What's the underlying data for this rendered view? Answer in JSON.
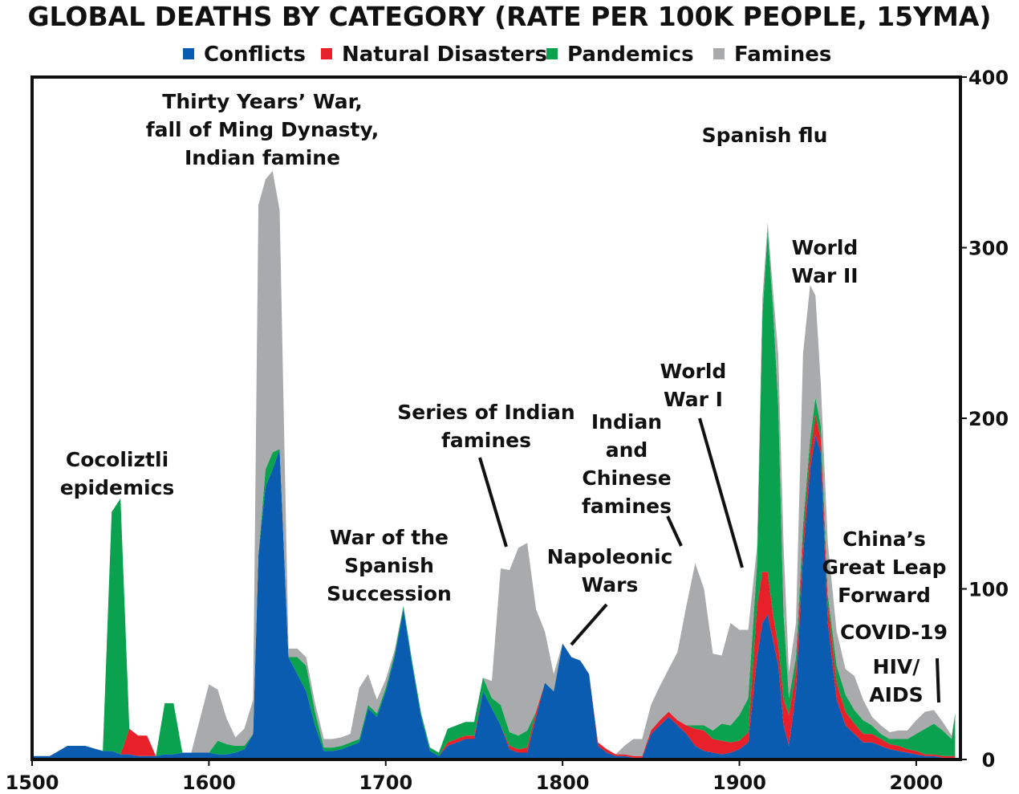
{
  "chart_data": {
    "type": "area",
    "title": "GLOBAL DEATHS BY CATEGORY (RATE PER 100K PEOPLE, 15YMA)",
    "stacked": true,
    "xlim": [
      1500,
      2025
    ],
    "ylim": [
      0,
      400
    ],
    "x_ticks": [
      "1500",
      "1600",
      "1700",
      "1800",
      "1900",
      "2000"
    ],
    "y_ticks": [
      "0",
      "100",
      "200",
      "300",
      "400"
    ],
    "y_axis_side": "right",
    "legend_position": "top",
    "x": [
      1500,
      1510,
      1520,
      1530,
      1540,
      1545,
      1550,
      1555,
      1560,
      1565,
      1570,
      1575,
      1580,
      1585,
      1590,
      1595,
      1600,
      1605,
      1610,
      1615,
      1620,
      1625,
      1628,
      1632,
      1636,
      1640,
      1645,
      1650,
      1655,
      1660,
      1665,
      1670,
      1675,
      1680,
      1685,
      1690,
      1695,
      1700,
      1705,
      1710,
      1715,
      1720,
      1725,
      1730,
      1735,
      1740,
      1745,
      1750,
      1755,
      1760,
      1765,
      1770,
      1775,
      1780,
      1785,
      1790,
      1795,
      1800,
      1805,
      1810,
      1815,
      1820,
      1825,
      1830,
      1835,
      1840,
      1845,
      1850,
      1855,
      1860,
      1865,
      1870,
      1875,
      1880,
      1885,
      1890,
      1895,
      1900,
      1905,
      1910,
      1913,
      1916,
      1919,
      1922,
      1925,
      1928,
      1932,
      1936,
      1940,
      1943,
      1946,
      1950,
      1955,
      1960,
      1965,
      1970,
      1975,
      1980,
      1985,
      1990,
      1995,
      2000,
      2005,
      2010,
      2015,
      2020,
      2022
    ],
    "series": [
      {
        "name": "Conflicts",
        "color": "#0a5cb0",
        "values": [
          2,
          2,
          8,
          8,
          5,
          5,
          3,
          3,
          2,
          2,
          2,
          3,
          3,
          4,
          4,
          4,
          4,
          3,
          3,
          4,
          6,
          15,
          120,
          160,
          170,
          182,
          60,
          50,
          40,
          20,
          5,
          5,
          6,
          8,
          10,
          30,
          25,
          40,
          60,
          88,
          55,
          25,
          5,
          2,
          8,
          10,
          12,
          12,
          40,
          30,
          20,
          6,
          4,
          4,
          25,
          45,
          40,
          68,
          60,
          58,
          50,
          8,
          4,
          2,
          2,
          1,
          1,
          15,
          20,
          25,
          20,
          15,
          8,
          5,
          4,
          3,
          4,
          6,
          10,
          60,
          80,
          85,
          70,
          55,
          20,
          8,
          40,
          120,
          170,
          190,
          180,
          80,
          35,
          20,
          15,
          10,
          10,
          8,
          6,
          5,
          4,
          3,
          2,
          2,
          1,
          1,
          1
        ]
      },
      {
        "name": "Natural Disasters",
        "color": "#e8202a",
        "values": [
          0,
          0,
          0,
          0,
          0,
          0,
          0,
          15,
          12,
          12,
          0,
          0,
          0,
          0,
          0,
          0,
          0,
          0,
          0,
          0,
          0,
          0,
          0,
          0,
          0,
          0,
          0,
          0,
          0,
          0,
          0,
          0,
          0,
          0,
          0,
          0,
          0,
          0,
          0,
          0,
          0,
          0,
          0,
          0,
          2,
          2,
          2,
          2,
          0,
          0,
          0,
          2,
          2,
          3,
          3,
          0,
          0,
          0,
          0,
          0,
          0,
          2,
          2,
          1,
          1,
          1,
          1,
          2,
          3,
          3,
          3,
          5,
          10,
          12,
          8,
          8,
          6,
          5,
          6,
          30,
          30,
          25,
          15,
          12,
          15,
          18,
          12,
          10,
          10,
          12,
          8,
          12,
          10,
          8,
          6,
          5,
          5,
          4,
          3,
          3,
          2,
          2,
          1,
          1,
          1,
          1,
          1
        ]
      },
      {
        "name": "Pandemics",
        "color": "#0aa14f",
        "values": [
          0,
          0,
          0,
          0,
          0,
          140,
          150,
          0,
          0,
          0,
          0,
          30,
          30,
          0,
          0,
          0,
          0,
          8,
          6,
          4,
          2,
          0,
          0,
          10,
          10,
          0,
          0,
          10,
          15,
          8,
          2,
          2,
          2,
          2,
          2,
          2,
          2,
          2,
          2,
          2,
          2,
          2,
          2,
          2,
          8,
          8,
          8,
          8,
          8,
          6,
          12,
          8,
          8,
          10,
          0,
          0,
          0,
          0,
          0,
          0,
          0,
          0,
          0,
          0,
          0,
          0,
          0,
          0,
          0,
          0,
          0,
          0,
          2,
          3,
          5,
          10,
          10,
          15,
          20,
          25,
          150,
          200,
          180,
          140,
          50,
          10,
          8,
          8,
          8,
          10,
          8,
          5,
          10,
          10,
          8,
          8,
          5,
          3,
          3,
          4,
          6,
          10,
          15,
          18,
          15,
          10,
          25
        ]
      },
      {
        "name": "Famines",
        "color": "#a9aaab",
        "values": [
          0,
          0,
          0,
          0,
          0,
          0,
          0,
          0,
          0,
          0,
          0,
          0,
          0,
          0,
          0,
          20,
          40,
          30,
          15,
          5,
          10,
          20,
          205,
          170,
          165,
          140,
          5,
          5,
          5,
          5,
          5,
          5,
          5,
          5,
          30,
          18,
          8,
          5,
          2,
          0,
          0,
          0,
          0,
          0,
          0,
          0,
          0,
          0,
          0,
          10,
          80,
          95,
          110,
          110,
          60,
          30,
          10,
          0,
          0,
          0,
          0,
          0,
          0,
          0,
          5,
          10,
          10,
          15,
          20,
          25,
          40,
          70,
          95,
          80,
          45,
          40,
          60,
          50,
          40,
          10,
          10,
          5,
          10,
          30,
          40,
          15,
          20,
          100,
          90,
          60,
          25,
          30,
          20,
          15,
          20,
          12,
          5,
          5,
          4,
          5,
          5,
          8,
          10,
          8,
          5,
          2,
          0
        ]
      }
    ],
    "annotations": [
      {
        "text": [
          "Thirty Years’ War,",
          "fall of Ming Dynasty,",
          "Indian famine"
        ]
      },
      {
        "text": [
          "Cocoliztli",
          "epidemics"
        ]
      },
      {
        "text": [
          "War of the",
          "Spanish",
          "Succession"
        ]
      },
      {
        "text": [
          "Series of Indian",
          "famines"
        ]
      },
      {
        "text": [
          "Napoleonic",
          "Wars"
        ]
      },
      {
        "text": [
          "Indian",
          "and",
          "Chinese",
          "famines"
        ]
      },
      {
        "text": [
          "World",
          "War I"
        ]
      },
      {
        "text": [
          "Spanish flu"
        ]
      },
      {
        "text": [
          "World",
          "War II"
        ]
      },
      {
        "text": [
          "China’s",
          "Great Leap",
          "Forward"
        ]
      },
      {
        "text": [
          "COVID-19"
        ]
      },
      {
        "text": [
          "HIV/",
          "AIDS"
        ]
      }
    ]
  }
}
